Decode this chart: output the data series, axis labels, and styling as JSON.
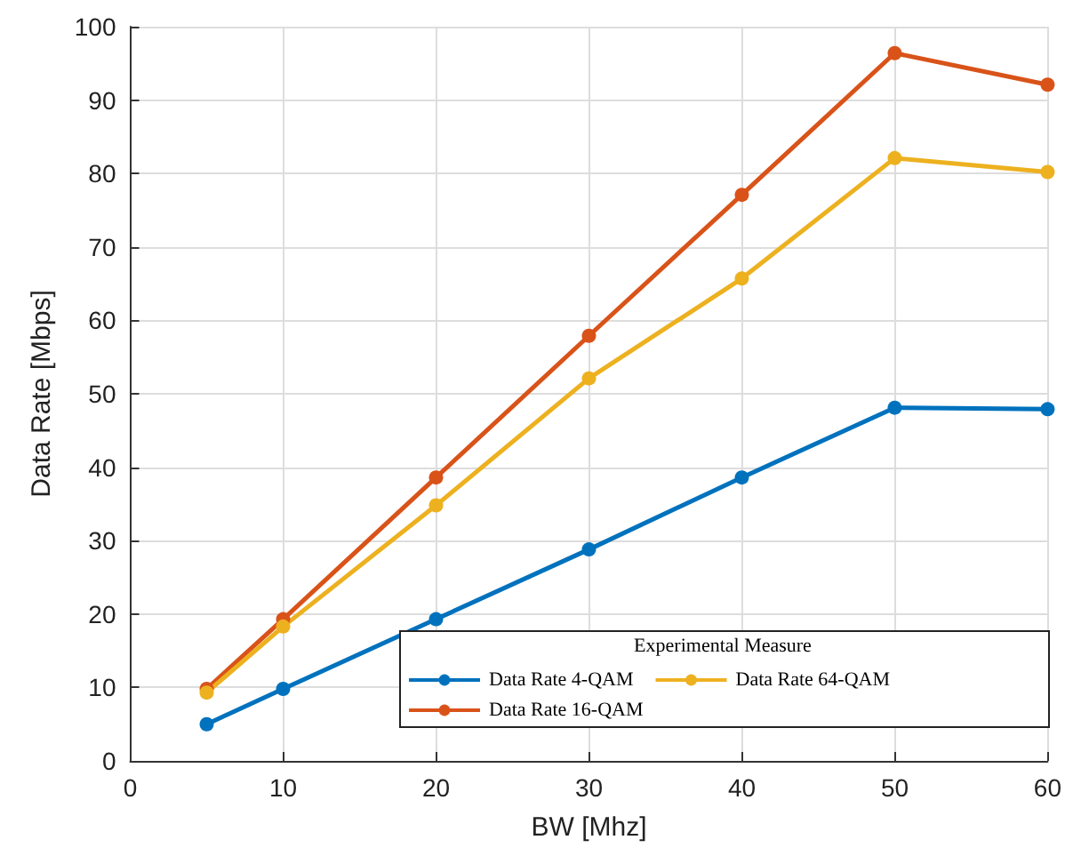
{
  "chart_data": {
    "type": "line",
    "xlabel": "BW [Mhz]",
    "ylabel": "Data Rate [Mbps]",
    "legend_title": "Experimental Measure",
    "x": [
      5,
      10,
      20,
      30,
      40,
      50,
      60
    ],
    "series": [
      {
        "name": "Data Rate 4-QAM",
        "color": "#0072bd",
        "values": [
          5.0,
          9.8,
          19.3,
          28.8,
          38.6,
          48.1,
          47.9
        ]
      },
      {
        "name": "Data Rate 16-QAM",
        "color": "#d95319",
        "values": [
          9.8,
          19.3,
          38.6,
          57.9,
          77.1,
          96.4,
          92.1
        ]
      },
      {
        "name": "Data Rate 64-QAM",
        "color": "#edb120",
        "values": [
          9.3,
          18.3,
          34.8,
          52.1,
          65.7,
          82.1,
          80.2
        ]
      }
    ],
    "xlim": [
      0,
      60
    ],
    "xticks": [
      0,
      10,
      20,
      30,
      40,
      50,
      60
    ],
    "ylim": [
      0,
      100
    ],
    "yticks": [
      0,
      10,
      20,
      30,
      40,
      50,
      60,
      70,
      80,
      90,
      100
    ],
    "grid": true,
    "legend": "bottom right",
    "marker": "circle",
    "line_style": "solid"
  }
}
